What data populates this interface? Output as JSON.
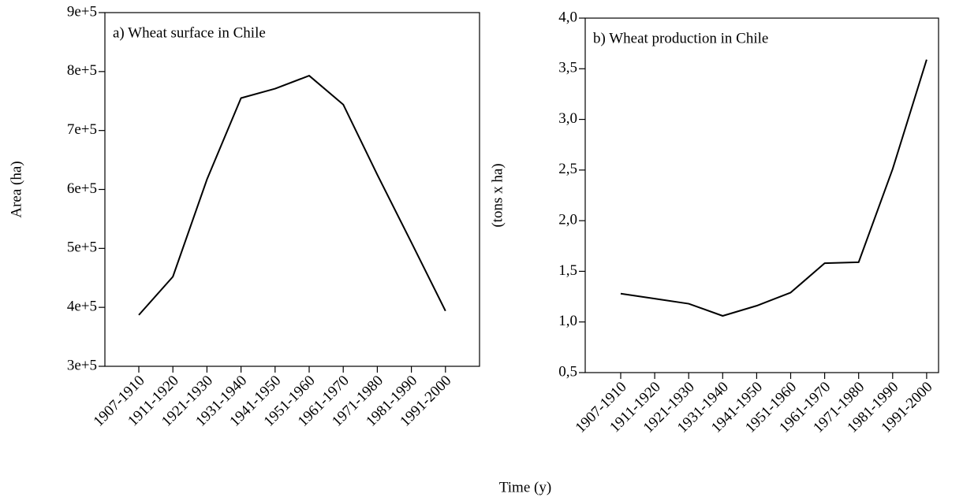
{
  "xlabel": "Time (y)",
  "chart_data": [
    {
      "type": "line",
      "title": "a) Wheat surface in Chile",
      "ylabel": "Area (ha)",
      "categories": [
        "1907-1910",
        "1911-1920",
        "1921-1930",
        "1931-1940",
        "1941-1950",
        "1951-1960",
        "1961-1970",
        "1971-1980",
        "1981-1990",
        "1991-2000"
      ],
      "values": [
        387000,
        452000,
        617000,
        755000,
        771000,
        793000,
        744000,
        625000,
        510000,
        394000
      ],
      "color": "#000000",
      "ylim": [
        300000,
        900000
      ],
      "yticks": [
        {
          "value": 300000,
          "label": "3e+5"
        },
        {
          "value": 400000,
          "label": "4e+5"
        },
        {
          "value": 500000,
          "label": "5e+5"
        },
        {
          "value": 600000,
          "label": "6e+5"
        },
        {
          "value": 700000,
          "label": "7e+5"
        },
        {
          "value": 800000,
          "label": "8e+5"
        },
        {
          "value": 900000,
          "label": "9e+5"
        }
      ]
    },
    {
      "type": "line",
      "title": "b) Wheat production in Chile",
      "ylabel": "(tons x ha)",
      "categories": [
        "1907-1910",
        "1911-1920",
        "1921-1930",
        "1931-1940",
        "1941-1950",
        "1951-1960",
        "1961-1970",
        "1971-1980",
        "1981-1990",
        "1991-2000"
      ],
      "values": [
        1.28,
        1.23,
        1.18,
        1.06,
        1.16,
        1.29,
        1.58,
        1.59,
        2.51,
        3.59
      ],
      "color": "#000000",
      "ylim": [
        0.5,
        4.0
      ],
      "yticks": [
        {
          "value": 0.5,
          "label": "0,5"
        },
        {
          "value": 1.0,
          "label": "1,0"
        },
        {
          "value": 1.5,
          "label": "1,5"
        },
        {
          "value": 2.0,
          "label": "2,0"
        },
        {
          "value": 2.5,
          "label": "2,5"
        },
        {
          "value": 3.0,
          "label": "3,0"
        },
        {
          "value": 3.5,
          "label": "3,5"
        },
        {
          "value": 4.0,
          "label": "4,0"
        }
      ]
    }
  ]
}
